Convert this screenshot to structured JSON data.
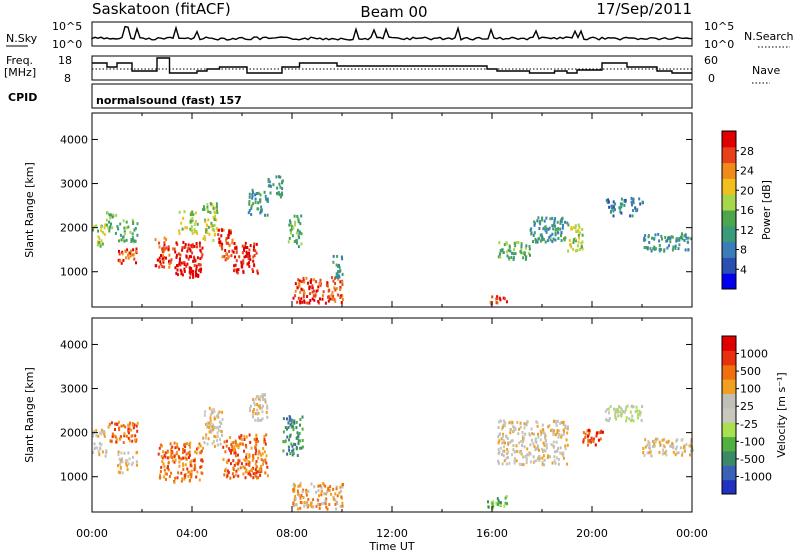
{
  "header": {
    "radar_title": "Saskatoon (fitACF)",
    "beam_title": "Beam 00",
    "date_title": "17/Sep/2011"
  },
  "strips": {
    "nsky": {
      "label": "N.Sky",
      "tick_top": "10^5",
      "tick_bottom": "10^0"
    },
    "nsearch": {
      "label": "N.Search",
      "tick_top": "10^5",
      "tick_bottom": "10^0"
    },
    "freq": {
      "label_line1": "Freq.",
      "label_line2": "[MHz]",
      "tick_top": "18",
      "tick_bottom": "8"
    },
    "nave": {
      "label": "Nave",
      "tick_top": "60",
      "tick_bottom": "0"
    },
    "cpid": {
      "label": "CPID",
      "program": "normalsound (fast) 157"
    }
  },
  "chart_data": [
    {
      "type": "heatmap",
      "panel": "power",
      "ylabel": "Slant Range [km]",
      "ylim": [
        200,
        4600
      ],
      "yticks": [
        "1000",
        "2000",
        "3000",
        "4000"
      ],
      "xlim": [
        0,
        24
      ],
      "colorbar": {
        "label": "Power [dB]",
        "ticks": [
          "4",
          "8",
          "12",
          "16",
          "20",
          "24",
          "28"
        ],
        "colors": [
          "#0000ee",
          "#2a4fb0",
          "#3a7db8",
          "#3b9a7a",
          "#4da64d",
          "#a6d64a",
          "#f0c020",
          "#f08a1a",
          "#e8401a",
          "#e00000"
        ]
      },
      "echo_regions": [
        {
          "t0": 0.0,
          "t1": 0.5,
          "r0": 1600,
          "r1": 2100,
          "level": 5
        },
        {
          "t0": 0.5,
          "t1": 1.0,
          "r0": 1900,
          "r1": 2400,
          "level": 4
        },
        {
          "t0": 1.0,
          "t1": 1.8,
          "r0": 1200,
          "r1": 1550,
          "level": 8
        },
        {
          "t0": 1.0,
          "t1": 1.8,
          "r0": 1700,
          "r1": 2200,
          "level": 4
        },
        {
          "t0": 2.5,
          "t1": 3.2,
          "r0": 1100,
          "r1": 1800,
          "level": 8
        },
        {
          "t0": 3.2,
          "t1": 4.4,
          "r0": 900,
          "r1": 1700,
          "level": 9
        },
        {
          "t0": 3.4,
          "t1": 4.2,
          "r0": 1900,
          "r1": 2400,
          "level": 5
        },
        {
          "t0": 4.4,
          "t1": 5.0,
          "r0": 1700,
          "r1": 2600,
          "level": 5
        },
        {
          "t0": 5.0,
          "t1": 5.6,
          "r0": 1300,
          "r1": 2000,
          "level": 8
        },
        {
          "t0": 5.6,
          "t1": 6.6,
          "r0": 1000,
          "r1": 1700,
          "level": 9
        },
        {
          "t0": 6.2,
          "t1": 7.0,
          "r0": 2300,
          "r1": 2900,
          "level": 3
        },
        {
          "t0": 7.0,
          "t1": 7.6,
          "r0": 2700,
          "r1": 3200,
          "level": 3
        },
        {
          "t0": 7.8,
          "t1": 8.4,
          "r0": 1600,
          "r1": 2300,
          "level": 4
        },
        {
          "t0": 8.0,
          "t1": 10.0,
          "r0": 300,
          "r1": 900,
          "level": 8
        },
        {
          "t0": 9.6,
          "t1": 10.0,
          "r0": 900,
          "r1": 1400,
          "level": 3
        },
        {
          "t0": 15.8,
          "t1": 16.6,
          "r0": 300,
          "r1": 500,
          "level": 8
        },
        {
          "t0": 16.2,
          "t1": 17.5,
          "r0": 1300,
          "r1": 1700,
          "level": 4
        },
        {
          "t0": 17.5,
          "t1": 19.0,
          "r0": 1700,
          "r1": 2300,
          "level": 3
        },
        {
          "t0": 19.0,
          "t1": 19.6,
          "r0": 1500,
          "r1": 2100,
          "level": 5
        },
        {
          "t0": 20.5,
          "t1": 22.0,
          "r0": 2300,
          "r1": 2700,
          "level": 2
        },
        {
          "t0": 22.0,
          "t1": 24.0,
          "r0": 1500,
          "r1": 1900,
          "level": 3
        }
      ]
    },
    {
      "type": "heatmap",
      "panel": "velocity",
      "ylabel": "Slant Range [km]",
      "ylim": [
        200,
        4600
      ],
      "yticks": [
        "1000",
        "2000",
        "3000",
        "4000"
      ],
      "xlim": [
        0,
        24
      ],
      "colorbar": {
        "label": "Velocity [m s⁻¹]",
        "ticks": [
          "1000",
          "500",
          "100",
          "25",
          "-25",
          "-100",
          "-500",
          "-1000"
        ],
        "colors": [
          "#2030c0",
          "#3a60b8",
          "#3a8a6a",
          "#50b040",
          "#a8e050",
          "#c8c8c0",
          "#c0c0b8",
          "#f0a020",
          "#f07010",
          "#e83010",
          "#e00000"
        ]
      },
      "echo_regions": [
        {
          "t0": 0.0,
          "t1": 0.6,
          "r0": 1500,
          "r1": 2100,
          "level": 6
        },
        {
          "t0": 0.6,
          "t1": 1.8,
          "r0": 1800,
          "r1": 2300,
          "level": 8
        },
        {
          "t0": 1.0,
          "t1": 1.8,
          "r0": 1100,
          "r1": 1600,
          "level": 6
        },
        {
          "t0": 2.6,
          "t1": 4.4,
          "r0": 900,
          "r1": 1800,
          "level": 8
        },
        {
          "t0": 4.4,
          "t1": 5.2,
          "r0": 1700,
          "r1": 2600,
          "level": 6
        },
        {
          "t0": 5.2,
          "t1": 7.0,
          "r0": 1000,
          "r1": 2000,
          "level": 8
        },
        {
          "t0": 6.2,
          "t1": 7.0,
          "r0": 2300,
          "r1": 2900,
          "level": 6
        },
        {
          "t0": 7.6,
          "t1": 8.4,
          "r0": 1500,
          "r1": 2400,
          "level": 2
        },
        {
          "t0": 8.0,
          "t1": 10.0,
          "r0": 300,
          "r1": 900,
          "level": 7
        },
        {
          "t0": 15.8,
          "t1": 16.6,
          "r0": 300,
          "r1": 600,
          "level": 3
        },
        {
          "t0": 16.2,
          "t1": 19.0,
          "r0": 1300,
          "r1": 2300,
          "level": 6
        },
        {
          "t0": 19.6,
          "t1": 20.4,
          "r0": 1700,
          "r1": 2100,
          "level": 9
        },
        {
          "t0": 20.5,
          "t1": 22.0,
          "r0": 2300,
          "r1": 2700,
          "level": 5
        },
        {
          "t0": 22.0,
          "t1": 24.0,
          "r0": 1500,
          "r1": 1900,
          "level": 6
        }
      ]
    }
  ],
  "x_axis": {
    "label": "Time UT",
    "ticks": [
      "00:00",
      "04:00",
      "08:00",
      "12:00",
      "16:00",
      "20:00",
      "00:00"
    ]
  }
}
